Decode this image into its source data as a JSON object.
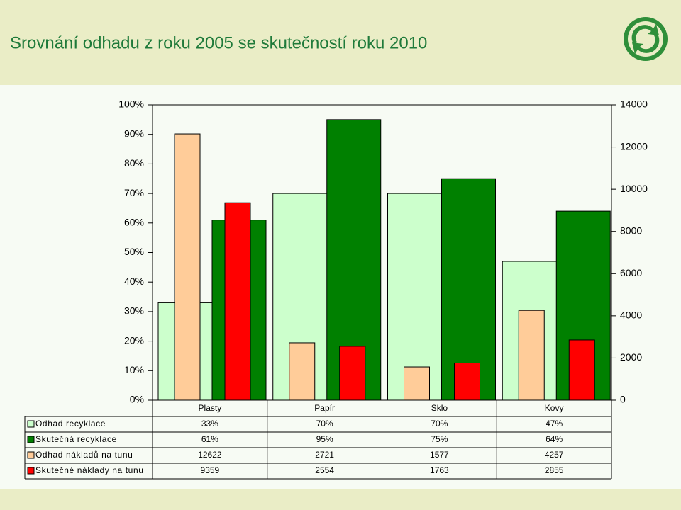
{
  "chart_data": {
    "type": "bar",
    "title": "Srovnání odhadu z roku 2005 se skutečností roku 2010",
    "categories": [
      "Plasty",
      "Papír",
      "Sklo",
      "Kovy"
    ],
    "series": [
      {
        "name": "Odhad recyklace",
        "color": "#ccffcc",
        "axis": "y",
        "values": [
          33,
          70,
          70,
          47
        ],
        "value_labels": [
          "33%",
          "70%",
          "70%",
          "47%"
        ]
      },
      {
        "name": "Skutečná recyklace",
        "color": "#008000",
        "axis": "y",
        "values": [
          61,
          95,
          75,
          64
        ],
        "value_labels": [
          "61%",
          "95%",
          "75%",
          "64%"
        ]
      },
      {
        "name": "Odhad nákladů na tunu",
        "color": "#ffcc99",
        "axis": "y2",
        "values": [
          12622,
          2721,
          1577,
          4257
        ]
      },
      {
        "name": "Skutečné náklady na tunu",
        "color": "#ff0000",
        "axis": "y2",
        "values": [
          9359,
          2554,
          1763,
          2855
        ]
      }
    ],
    "ylim": [
      0,
      100
    ],
    "yticks": [
      {
        "value": 0,
        "label": "0%"
      },
      {
        "value": 10,
        "label": "10%"
      },
      {
        "value": 20,
        "label": "20%"
      },
      {
        "value": 30,
        "label": "30%"
      },
      {
        "value": 40,
        "label": "40%"
      },
      {
        "value": 50,
        "label": "50%"
      },
      {
        "value": 60,
        "label": "60%"
      },
      {
        "value": 70,
        "label": "70%"
      },
      {
        "value": 80,
        "label": "80%"
      },
      {
        "value": 90,
        "label": "90%"
      },
      {
        "value": 100,
        "label": "100%"
      }
    ],
    "y2lim": [
      0,
      14000
    ],
    "y2ticks": [
      0,
      2000,
      4000,
      6000,
      8000,
      10000,
      12000,
      14000
    ],
    "data_table": true
  }
}
